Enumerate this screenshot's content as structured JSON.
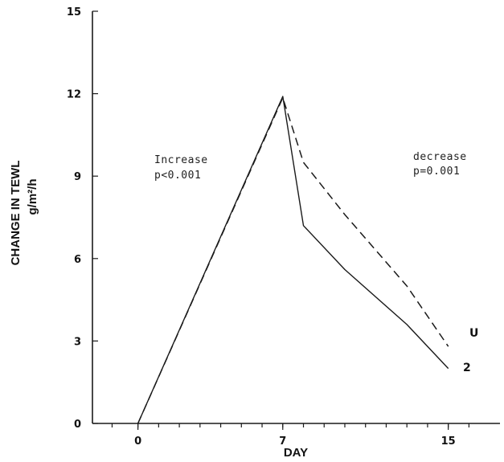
{
  "chart_data": {
    "type": "line",
    "xlabel": "DAY",
    "ylabel": "CHANGE IN TEWL",
    "ylabel_unit": "g/m²/h",
    "xlim": [
      -2.2,
      17.5
    ],
    "ylim": [
      0,
      15
    ],
    "x_ticks": [
      0,
      7,
      15
    ],
    "x_tick_labels": [
      "0",
      "7",
      "15"
    ],
    "y_ticks": [
      0,
      3,
      6,
      9,
      12,
      15
    ],
    "y_tick_labels": [
      "0",
      "3",
      "6",
      "9",
      "12",
      "15"
    ],
    "x_minor_ticks": [
      -1.25,
      0,
      1,
      2,
      3,
      4,
      5,
      6,
      7,
      8,
      9,
      10,
      11,
      12,
      13,
      14,
      15,
      16
    ],
    "grid": false,
    "series": [
      {
        "name": "U",
        "style": "dashed",
        "x": [
          0,
          7,
          8,
          10,
          13,
          15
        ],
        "y": [
          0,
          11.85,
          9.5,
          7.6,
          5.0,
          2.8
        ]
      },
      {
        "name": "2",
        "style": "solid",
        "x": [
          0,
          7,
          8,
          10,
          13,
          15
        ],
        "y": [
          0,
          11.9,
          7.2,
          5.6,
          3.6,
          2.0
        ]
      }
    ],
    "annotations": [
      {
        "lines": [
          "Increase",
          "p<0.001"
        ]
      },
      {
        "lines": [
          "decrease",
          "p=0.001"
        ]
      }
    ],
    "colors": {
      "line": "#1a1a1a",
      "axis": "#1a1a1a"
    }
  }
}
